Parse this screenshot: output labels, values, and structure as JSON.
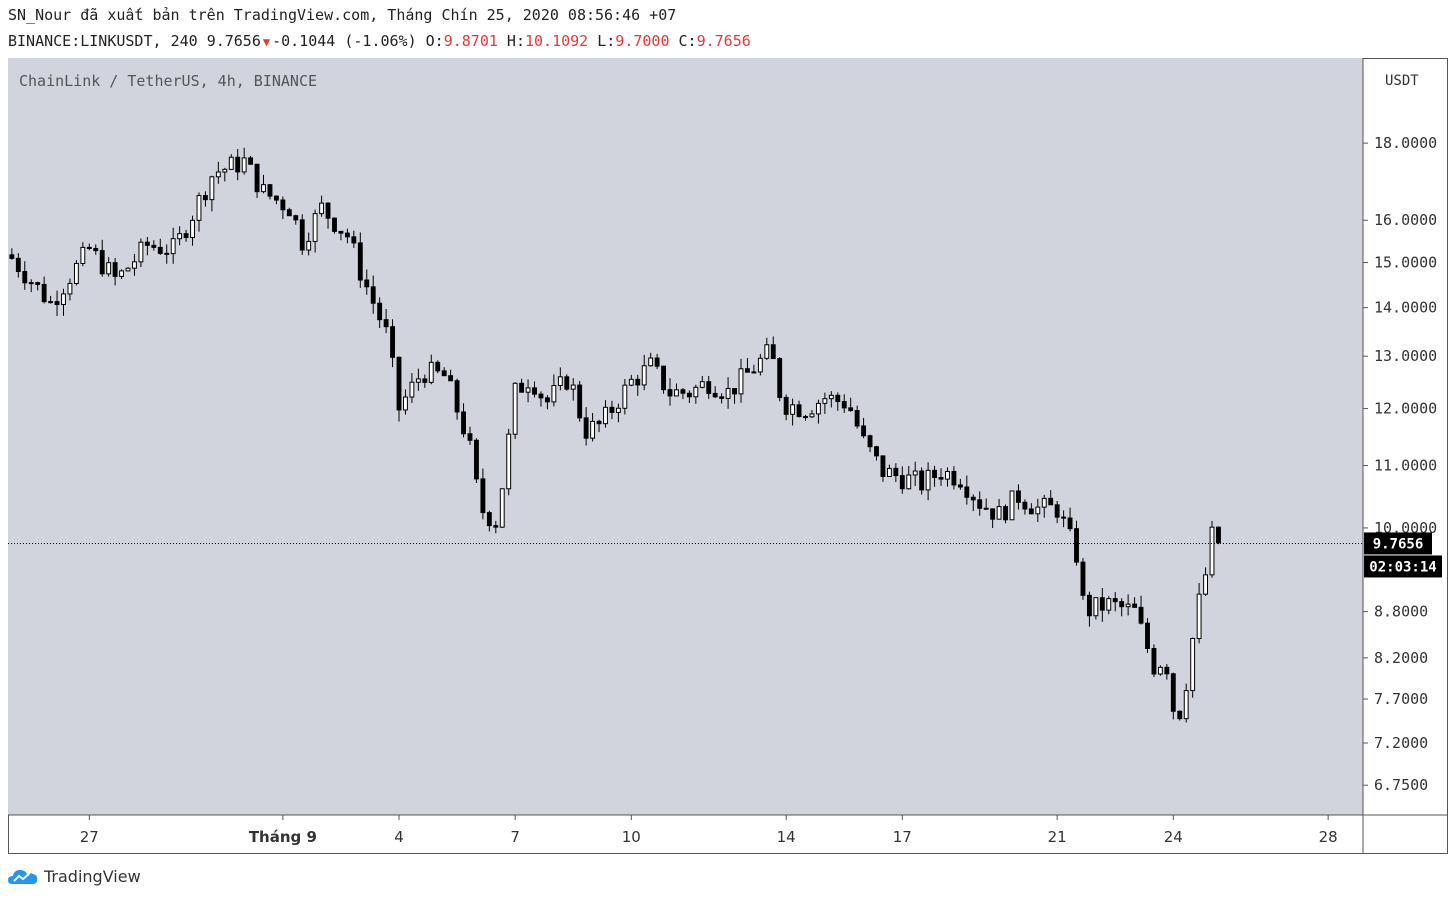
{
  "header": {
    "published_line": "SN_Nour đã xuất bản trên TradingView.com, Tháng Chín 25, 2020 08:56:46 +07",
    "symbol": "BINANCE:LINKUSDT,",
    "interval": "240",
    "last": "9.7656",
    "change": "-0.1044",
    "change_pct": "(-1.06%)",
    "o_label": "O:",
    "o_value": "9.8701",
    "h_label": "H:",
    "h_value": "10.1092",
    "l_label": "L:",
    "l_value": "9.7000",
    "c_label": "C:",
    "c_value": "9.7656"
  },
  "legend": "ChainLink / TetherUS, 4h, BINANCE",
  "footer": {
    "brand": "TradingView"
  },
  "chart_data": {
    "type": "candlestick",
    "scale": "log",
    "currency_label": "USDT",
    "y_ticks": [
      6.75,
      7.2,
      7.7,
      8.2,
      8.8,
      10.0,
      11.0,
      12.0,
      13.0,
      14.0,
      15.0,
      16.0,
      18.0
    ],
    "y_tick_labels": [
      "6.7500",
      "7.2000",
      "7.7000",
      "8.2000",
      "8.8000",
      "10.0000",
      "11.0000",
      "12.0000",
      "13.0000",
      "14.0000",
      "15.0000",
      "16.0000",
      "18.0000"
    ],
    "ylim": [
      6.45,
      20.5
    ],
    "x_ticks": [
      {
        "label": "27",
        "day": 27,
        "bold": false
      },
      {
        "label": "Tháng 9",
        "day": 32,
        "bold": true
      },
      {
        "label": "4",
        "day": 35,
        "bold": false
      },
      {
        "label": "7",
        "day": 38,
        "bold": false
      },
      {
        "label": "10",
        "day": 41,
        "bold": false
      },
      {
        "label": "14",
        "day": 45,
        "bold": false
      },
      {
        "label": "17",
        "day": 48,
        "bold": false
      },
      {
        "label": "21",
        "day": 52,
        "bold": false
      },
      {
        "label": "24",
        "day": 55,
        "bold": false
      },
      {
        "label": "28",
        "day": 59,
        "bold": false
      }
    ],
    "xlim": [
      24.9,
      59.9
    ],
    "last_price": 9.7656,
    "last_price_label": "9.7656",
    "countdown": "02:03:14",
    "colors": {
      "background": "#d1d4dc",
      "up_body": "#ffffff",
      "down_body": "#000000",
      "wick": "#000000"
    },
    "key_closes": [
      {
        "day": 25.0,
        "close": 15.1
      },
      {
        "day": 26.0,
        "close": 14.1
      },
      {
        "day": 27.0,
        "close": 15.3
      },
      {
        "day": 27.7,
        "close": 14.6
      },
      {
        "day": 28.5,
        "close": 15.4
      },
      {
        "day": 29.2,
        "close": 15.3
      },
      {
        "day": 30.2,
        "close": 17.2
      },
      {
        "day": 31.0,
        "close": 17.5
      },
      {
        "day": 31.5,
        "close": 16.7
      },
      {
        "day": 32.2,
        "close": 16.3
      },
      {
        "day": 32.5,
        "close": 15.5
      },
      {
        "day": 33.0,
        "close": 16.3
      },
      {
        "day": 33.7,
        "close": 15.6
      },
      {
        "day": 34.0,
        "close": 14.8
      },
      {
        "day": 34.7,
        "close": 13.4
      },
      {
        "day": 35.0,
        "close": 12.0
      },
      {
        "day": 35.6,
        "close": 12.7
      },
      {
        "day": 36.2,
        "close": 12.6
      },
      {
        "day": 36.8,
        "close": 11.4
      },
      {
        "day": 37.1,
        "close": 10.3
      },
      {
        "day": 37.5,
        "close": 10.1
      },
      {
        "day": 37.7,
        "close": 10.8
      },
      {
        "day": 38.0,
        "close": 12.3
      },
      {
        "day": 38.4,
        "close": 12.6
      },
      {
        "day": 38.8,
        "close": 12.1
      },
      {
        "day": 39.4,
        "close": 12.6
      },
      {
        "day": 39.8,
        "close": 11.6
      },
      {
        "day": 40.2,
        "close": 11.7
      },
      {
        "day": 40.6,
        "close": 12.1
      },
      {
        "day": 41.0,
        "close": 12.5
      },
      {
        "day": 41.5,
        "close": 12.8
      },
      {
        "day": 42.0,
        "close": 12.3
      },
      {
        "day": 42.5,
        "close": 12.3
      },
      {
        "day": 43.0,
        "close": 12.5
      },
      {
        "day": 43.5,
        "close": 12.3
      },
      {
        "day": 44.2,
        "close": 12.8
      },
      {
        "day": 44.6,
        "close": 13.1
      },
      {
        "day": 44.9,
        "close": 12.1
      },
      {
        "day": 45.5,
        "close": 12.0
      },
      {
        "day": 46.0,
        "close": 12.2
      },
      {
        "day": 46.6,
        "close": 12.1
      },
      {
        "day": 47.0,
        "close": 11.4
      },
      {
        "day": 47.5,
        "close": 10.9
      },
      {
        "day": 48.0,
        "close": 10.8
      },
      {
        "day": 48.5,
        "close": 10.7
      },
      {
        "day": 49.0,
        "close": 10.9
      },
      {
        "day": 49.5,
        "close": 10.8
      },
      {
        "day": 50.0,
        "close": 10.4
      },
      {
        "day": 50.5,
        "close": 10.2
      },
      {
        "day": 51.0,
        "close": 10.5
      },
      {
        "day": 51.5,
        "close": 10.3
      },
      {
        "day": 52.0,
        "close": 10.3
      },
      {
        "day": 52.5,
        "close": 9.6
      },
      {
        "day": 52.7,
        "close": 8.8
      },
      {
        "day": 53.3,
        "close": 8.9
      },
      {
        "day": 54.0,
        "close": 8.8
      },
      {
        "day": 54.5,
        "close": 8.1
      },
      {
        "day": 54.8,
        "close": 8.2
      },
      {
        "day": 55.0,
        "close": 7.6
      },
      {
        "day": 55.2,
        "close": 7.55
      },
      {
        "day": 55.4,
        "close": 8.1
      },
      {
        "day": 55.6,
        "close": 8.8
      },
      {
        "day": 55.8,
        "close": 9.2
      },
      {
        "day": 56.0,
        "close": 9.87
      },
      {
        "day": 56.2,
        "close": 9.7656
      }
    ]
  }
}
